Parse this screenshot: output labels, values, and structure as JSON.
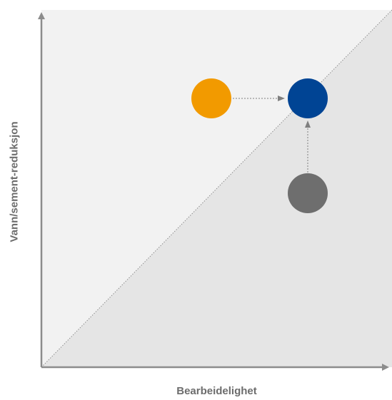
{
  "diagram": {
    "x_axis_label": "Bearbeidelighet",
    "y_axis_label": "Vann/sement-reduksjon",
    "colors": {
      "upper_region": "#f2f2f2",
      "lower_region": "#e5e5e5",
      "axis": "#8c8c8c",
      "diagonal": "#8c8c8c",
      "arrow": "#7f7f7f",
      "axis_label": "#6d6d6d"
    },
    "points": [
      {
        "id": "orange-point",
        "color": "#f29a00"
      },
      {
        "id": "blue-point",
        "color": "#004494"
      },
      {
        "id": "gray-point",
        "color": "#6e6e6e"
      }
    ],
    "arrows": [
      {
        "from": "orange-point",
        "to": "blue-point"
      },
      {
        "from": "gray-point",
        "to": "blue-point"
      }
    ]
  }
}
